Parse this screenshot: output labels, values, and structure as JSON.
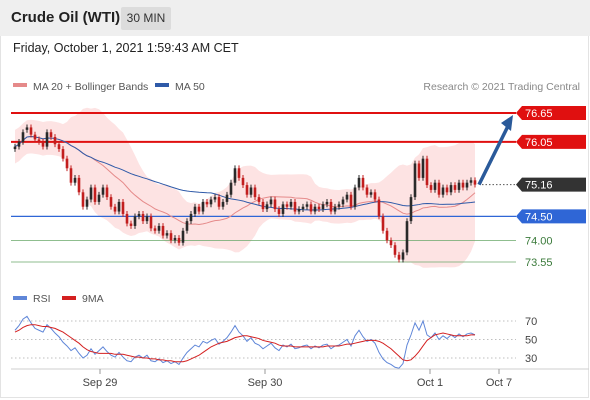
{
  "header": {
    "title": "Crude Oil (WTI)",
    "interval": "30 MIN"
  },
  "timestamp": "Friday, October 1, 2021 1:59:43 AM CET",
  "legend": {
    "bollinger": "MA 20 + Bollinger Bands",
    "ma50": "MA 50",
    "copyright": "Research © 2021 Trading Central",
    "rsi": "RSI",
    "rsi_ma": "9MA"
  },
  "colors": {
    "up": "#2a2a2a",
    "down": "#c21e1e",
    "ma20": "#e58a8a",
    "band": "#fde3e3",
    "ma50": "#2f5aa8",
    "resistance": "#e01010",
    "support": "#2f66d6",
    "target": "#6aa86a",
    "arrow": "#2a5a9a",
    "current": "#333333",
    "rsi": "#5f86d8",
    "rsi_ma": "#d42020"
  },
  "chart_data": [
    {
      "type": "candlestick",
      "title": "Crude Oil (WTI)",
      "ylim": [
        73.3,
        76.8
      ],
      "x_labels": [
        "Sep 29",
        "Sep 30",
        "Oct 1",
        "Oct 7"
      ],
      "levels": [
        {
          "label": "76.65",
          "value": 76.65,
          "kind": "resistance"
        },
        {
          "label": "76.05",
          "value": 76.05,
          "kind": "resistance"
        },
        {
          "label": "75.16",
          "value": 75.16,
          "kind": "current"
        },
        {
          "label": "74.50",
          "value": 74.5,
          "kind": "support"
        },
        {
          "label": "74.00",
          "value": 74.0,
          "kind": "target"
        },
        {
          "label": "73.55",
          "value": 73.55,
          "kind": "target"
        }
      ],
      "forecast": {
        "from": 75.16,
        "to": 76.65
      },
      "series": [
        {
          "name": "MA 20 + Bollinger Bands"
        },
        {
          "name": "MA 50"
        }
      ],
      "close": [
        75.95,
        76.05,
        76.25,
        76.35,
        76.2,
        76.1,
        76.05,
        75.95,
        76.25,
        76.15,
        76.0,
        75.9,
        75.7,
        75.5,
        75.2,
        75.3,
        75.0,
        74.7,
        74.85,
        75.1,
        74.8,
        74.95,
        75.1,
        74.9,
        74.7,
        74.6,
        74.8,
        74.55,
        74.35,
        74.3,
        74.5,
        74.55,
        74.4,
        74.5,
        74.25,
        74.2,
        74.3,
        74.1,
        74.15,
        74.0,
        74.05,
        73.95,
        74.2,
        74.4,
        74.55,
        74.7,
        74.6,
        74.8,
        74.75,
        74.85,
        74.9,
        74.7,
        74.8,
        74.95,
        75.2,
        75.5,
        75.3,
        75.15,
        74.95,
        75.1,
        74.9,
        74.8,
        74.65,
        74.75,
        74.85,
        74.65,
        74.55,
        74.75,
        74.7,
        74.8,
        74.6,
        74.65,
        74.7,
        74.75,
        74.6,
        74.7,
        74.65,
        74.75,
        74.8,
        74.6,
        74.7,
        74.75,
        74.85,
        74.95,
        74.7,
        75.1,
        75.3,
        75.1,
        74.95,
        75.0,
        74.85,
        74.5,
        74.2,
        74.0,
        73.9,
        73.7,
        73.6,
        73.75,
        74.4,
        74.9,
        75.6,
        75.3,
        75.7,
        75.15,
        75.05,
        75.2,
        74.95,
        75.1,
        75.0,
        75.15,
        75.05,
        75.2,
        75.1,
        75.2,
        75.25,
        75.16
      ],
      "open": [
        75.9,
        75.95,
        76.05,
        76.3,
        76.35,
        76.2,
        76.1,
        76.05,
        75.95,
        76.25,
        76.15,
        76.0,
        75.9,
        75.7,
        75.5,
        75.2,
        75.3,
        75.0,
        74.7,
        74.85,
        75.1,
        74.8,
        74.95,
        75.1,
        74.9,
        74.7,
        74.6,
        74.8,
        74.55,
        74.35,
        74.3,
        74.5,
        74.55,
        74.4,
        74.5,
        74.25,
        74.2,
        74.3,
        74.1,
        74.15,
        74.0,
        74.05,
        73.95,
        74.2,
        74.4,
        74.55,
        74.7,
        74.6,
        74.8,
        74.75,
        74.85,
        74.9,
        74.7,
        74.8,
        74.95,
        75.2,
        75.5,
        75.3,
        75.15,
        74.95,
        75.1,
        74.9,
        74.8,
        74.65,
        74.75,
        74.85,
        74.65,
        74.55,
        74.75,
        74.7,
        74.8,
        74.6,
        74.65,
        74.7,
        74.75,
        74.6,
        74.7,
        74.65,
        74.75,
        74.8,
        74.6,
        74.7,
        74.75,
        74.85,
        74.95,
        74.7,
        75.1,
        75.3,
        75.1,
        74.95,
        75.0,
        74.85,
        74.5,
        74.2,
        74.0,
        73.9,
        73.7,
        73.6,
        73.75,
        74.4,
        74.9,
        75.6,
        75.3,
        75.7,
        75.15,
        75.05,
        75.2,
        74.95,
        75.1,
        75.0,
        75.15,
        75.05,
        75.2,
        75.1,
        75.2,
        75.25
      ]
    },
    {
      "type": "line",
      "title": "RSI",
      "ylim": [
        20,
        80
      ],
      "y_ticks": [
        "70",
        "50",
        "30"
      ],
      "series": [
        {
          "name": "RSI",
          "values": [
            60,
            65,
            72,
            75,
            68,
            62,
            60,
            58,
            66,
            62,
            57,
            53,
            47,
            43,
            38,
            41,
            35,
            30,
            33,
            40,
            34,
            38,
            42,
            37,
            33,
            31,
            36,
            31,
            27,
            26,
            31,
            33,
            30,
            33,
            27,
            26,
            29,
            25,
            27,
            24,
            26,
            23,
            30,
            36,
            40,
            44,
            42,
            48,
            46,
            49,
            51,
            45,
            48,
            52,
            58,
            65,
            58,
            54,
            48,
            52,
            46,
            44,
            40,
            43,
            46,
            41,
            38,
            44,
            42,
            45,
            40,
            41,
            43,
            44,
            40,
            43,
            41,
            44,
            45,
            40,
            43,
            44,
            47,
            50,
            43,
            54,
            60,
            53,
            48,
            50,
            46,
            36,
            29,
            25,
            23,
            20,
            19,
            24,
            44,
            55,
            68,
            60,
            70,
            55,
            52,
            57,
            50,
            54,
            51,
            55,
            52,
            56,
            53,
            56,
            57,
            55
          ]
        },
        {
          "name": "9MA",
          "values": [
            58,
            60,
            63,
            65,
            66,
            66,
            65,
            64,
            64,
            63,
            62,
            60,
            58,
            55,
            52,
            49,
            46,
            42,
            39,
            37,
            36,
            35,
            35,
            35,
            35,
            34,
            34,
            34,
            33,
            32,
            31,
            31,
            30,
            30,
            29,
            29,
            28,
            28,
            27,
            27,
            26,
            26,
            26,
            27,
            29,
            31,
            33,
            36,
            39,
            42,
            44,
            46,
            47,
            48,
            50,
            52,
            53,
            54,
            54,
            53,
            52,
            51,
            49,
            48,
            47,
            46,
            44,
            43,
            43,
            43,
            42,
            42,
            42,
            42,
            42,
            42,
            42,
            42,
            43,
            43,
            43,
            43,
            44,
            45,
            45,
            46,
            47,
            48,
            49,
            49,
            49,
            48,
            46,
            43,
            40,
            36,
            32,
            28,
            27,
            28,
            32,
            37,
            43,
            49,
            52,
            55,
            56,
            57,
            56,
            55,
            54,
            54,
            54,
            54,
            55,
            55
          ]
        }
      ]
    }
  ]
}
